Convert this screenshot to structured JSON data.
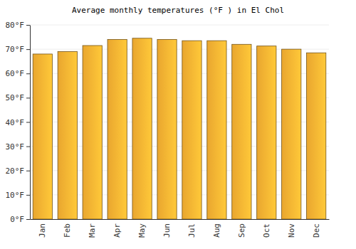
{
  "chart_data": {
    "type": "bar",
    "title": "Average monthly temperatures (°F ) in El Chol",
    "categories": [
      "Jan",
      "Feb",
      "Mar",
      "Apr",
      "May",
      "Jun",
      "Jul",
      "Aug",
      "Sep",
      "Oct",
      "Nov",
      "Dec"
    ],
    "values": [
      68,
      69,
      71.5,
      74,
      74.5,
      74,
      73.5,
      73.5,
      72,
      71.3,
      70,
      68.5
    ],
    "color": "#ffb533",
    "ylim": [
      0,
      80
    ],
    "yticks": [
      {
        "value": 0,
        "label": "0°F"
      },
      {
        "value": 10,
        "label": "10°F"
      },
      {
        "value": 20,
        "label": "20°F"
      },
      {
        "value": 30,
        "label": "30°F"
      },
      {
        "value": 40,
        "label": "40°F"
      },
      {
        "value": 50,
        "label": "50°F"
      },
      {
        "value": 60,
        "label": "60°F"
      },
      {
        "value": 70,
        "label": "70°F"
      },
      {
        "value": 80,
        "label": "80°F"
      }
    ],
    "grid": true
  }
}
